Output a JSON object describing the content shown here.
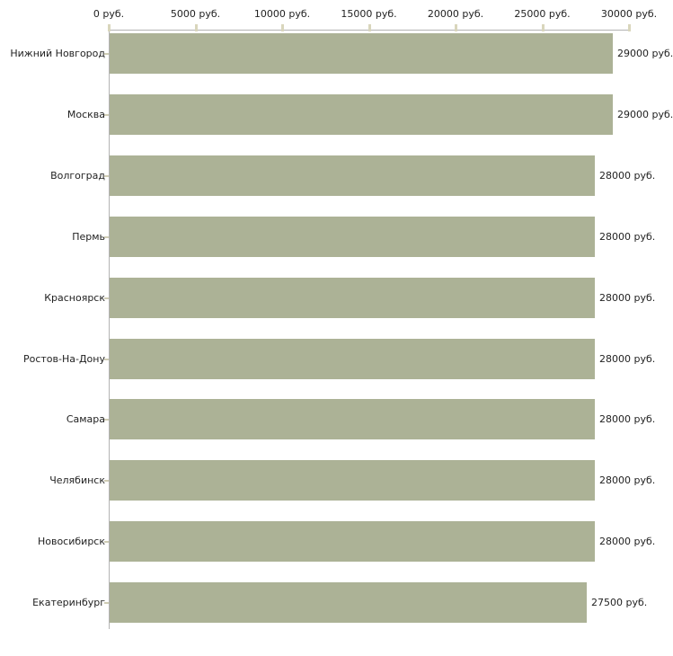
{
  "chart_data": {
    "type": "bar",
    "orientation": "horizontal",
    "title": "",
    "xlabel": "",
    "ylabel": "",
    "categories": [
      "Нижний Новгород",
      "Москва",
      "Волгоград",
      "Пермь",
      "Красноярск",
      "Ростов-На-Дону",
      "Самара",
      "Челябинск",
      "Новосибирск",
      "Екатеринбург"
    ],
    "values": [
      29000,
      29000,
      28000,
      28000,
      28000,
      28000,
      28000,
      28000,
      28000,
      27500
    ],
    "value_labels": [
      "29000 руб.",
      "29000 руб.",
      "28000 руб.",
      "28000 руб.",
      "28000 руб.",
      "28000 руб.",
      "28000 руб.",
      "28000 руб.",
      "28000 руб.",
      "27500 руб."
    ],
    "xlim": [
      0,
      30000
    ],
    "x_ticks": [
      0,
      5000,
      10000,
      15000,
      20000,
      25000,
      30000
    ],
    "x_tick_labels": [
      "0 руб.",
      "5000 руб.",
      "10000 руб.",
      "15000 руб.",
      "20000 руб.",
      "25000 руб.",
      "30000 руб."
    ],
    "grid": false,
    "legend": "none",
    "colors": {
      "bar": "#acb296",
      "axis_line": "#b3b3b3",
      "axis_tick": "#d9d6bc",
      "row_tick": "#cfccb4",
      "text": "#222222",
      "background": "#ffffff"
    }
  }
}
